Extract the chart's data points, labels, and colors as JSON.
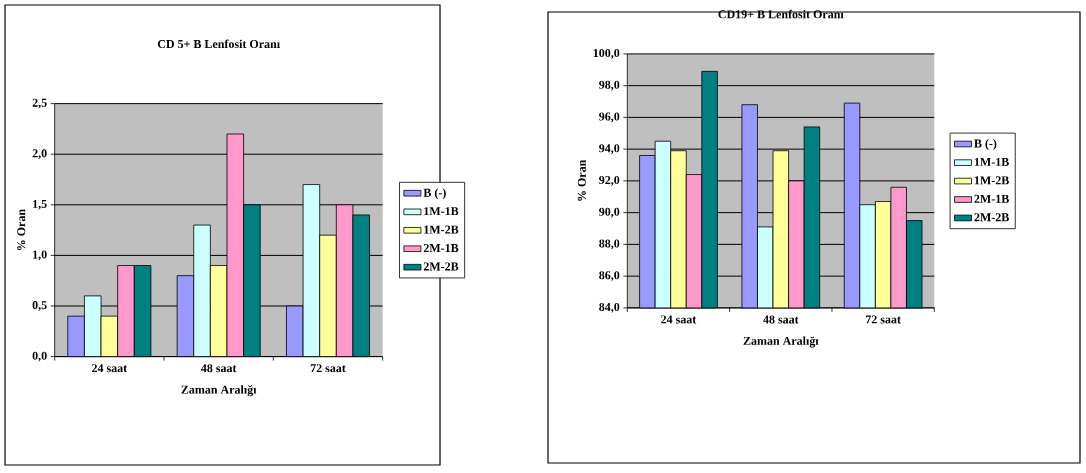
{
  "chart_data": [
    {
      "type": "bar",
      "title": "CD 5+ B Lenfosit Oranı",
      "xlabel": "Zaman Aralığı",
      "ylabel": "% Oran",
      "categories": [
        "24 saat",
        "48 saat",
        "72 saat"
      ],
      "series": [
        {
          "name": "B (-)",
          "color": "#9999ff",
          "values": [
            0.4,
            0.8,
            0.5
          ]
        },
        {
          "name": "1M-1B",
          "color": "#ccffff",
          "values": [
            0.6,
            1.3,
            1.7
          ]
        },
        {
          "name": "1M-2B",
          "color": "#ffff99",
          "values": [
            0.4,
            0.9,
            1.2
          ]
        },
        {
          "name": "2M-1B",
          "color": "#ff99cc",
          "values": [
            0.9,
            2.2,
            1.5
          ]
        },
        {
          "name": "2M-2B",
          "color": "#008080",
          "values": [
            0.9,
            1.5,
            1.4
          ]
        }
      ],
      "ylim": [
        0,
        2.5
      ],
      "yticks": [
        {
          "value": 0,
          "label": "0,0"
        },
        {
          "value": 0.5,
          "label": "0,5"
        },
        {
          "value": 1,
          "label": "1,0"
        },
        {
          "value": 1.5,
          "label": "1,5"
        },
        {
          "value": 2,
          "label": "2,0"
        },
        {
          "value": 2.5,
          "label": "2,5"
        }
      ],
      "grid": "y",
      "legend": "right"
    },
    {
      "type": "bar",
      "title": "CD19+ B Lenfosit Oranı",
      "xlabel": "Zaman Aralığı",
      "ylabel": "% Oran",
      "categories": [
        "24 saat",
        "48 saat",
        "72 saat"
      ],
      "series": [
        {
          "name": "B (-)",
          "color": "#9999ff",
          "values": [
            93.6,
            96.8,
            96.9
          ]
        },
        {
          "name": "1M-1B",
          "color": "#ccffff",
          "values": [
            94.5,
            89.1,
            90.5
          ]
        },
        {
          "name": "1M-2B",
          "color": "#ffff99",
          "values": [
            93.9,
            93.9,
            90.7
          ]
        },
        {
          "name": "2M-1B",
          "color": "#ff99cc",
          "values": [
            92.4,
            92.0,
            91.6
          ]
        },
        {
          "name": "2M-2B",
          "color": "#008080",
          "values": [
            98.9,
            95.4,
            89.5
          ]
        }
      ],
      "ylim": [
        84,
        100
      ],
      "yticks": [
        {
          "value": 84,
          "label": "84,0"
        },
        {
          "value": 86,
          "label": "86,0"
        },
        {
          "value": 88,
          "label": "88,0"
        },
        {
          "value": 90,
          "label": "90,0"
        },
        {
          "value": 92,
          "label": "92,0"
        },
        {
          "value": 94,
          "label": "94,0"
        },
        {
          "value": 96,
          "label": "96,0"
        },
        {
          "value": 98,
          "label": "98,0"
        },
        {
          "value": 100,
          "label": "100,0"
        }
      ],
      "grid": "y",
      "legend": "right"
    }
  ]
}
